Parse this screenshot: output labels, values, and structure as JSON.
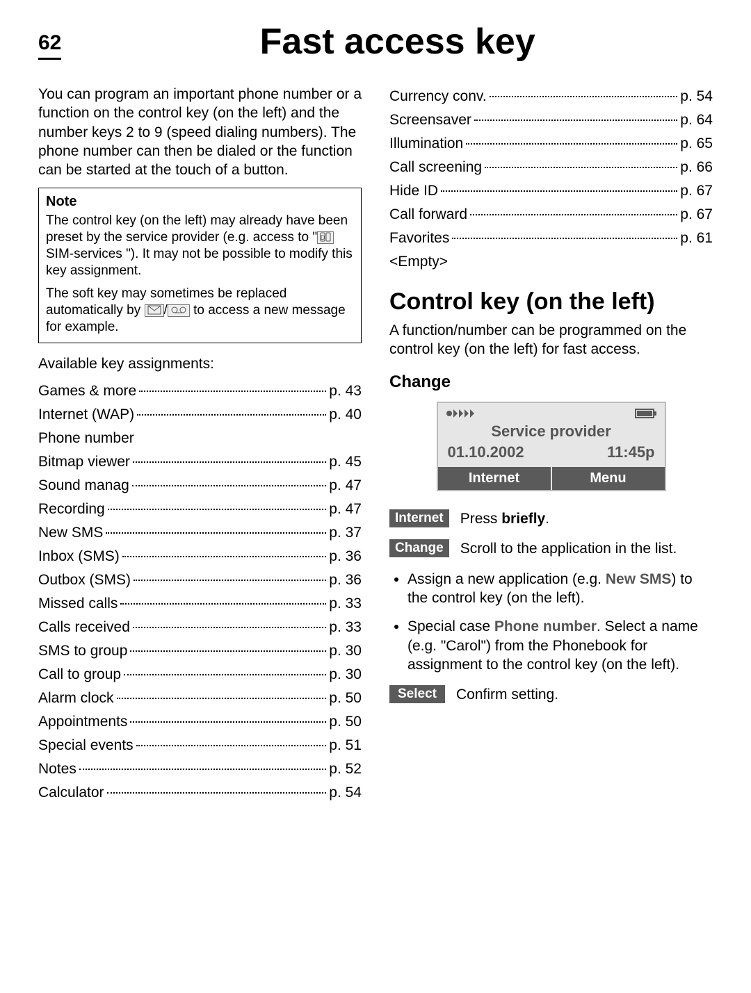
{
  "page_number": "62",
  "title": "Fast access key",
  "intro": "You can program an important phone number or a function on the control key (on the left) and the number keys 2 to 9 (speed dialing numbers). The phone number can then be dialed or the function can be started at the touch of a button.",
  "note": {
    "heading": "Note",
    "p1a": "The control key (on the left) may already have been preset by the service provider (e.g. access to \"",
    "p1b": " SIM-services \"). It may not be possible to modify this key assignment.",
    "p2a": "The soft key may sometimes be replaced automatically by ",
    "p2b": " to access a new message for example.",
    "sim_icon_label": "sim-icon",
    "msg_icon_label": "message-icon",
    "vm_icon_label": "voicemail-icon",
    "slash": "/"
  },
  "available_heading": "Available key assignments:",
  "toc_left": [
    {
      "label": "Games & more",
      "page": "p. 43"
    },
    {
      "label": "Internet (WAP)",
      "page": "p. 40"
    },
    {
      "label": "Phone number",
      "page": ""
    },
    {
      "label": "Bitmap viewer",
      "page": "p. 45"
    },
    {
      "label": "Sound manag",
      "page": "p. 47"
    },
    {
      "label": "Recording",
      "page": "p. 47"
    },
    {
      "label": "New SMS",
      "page": "p. 37"
    },
    {
      "label": "Inbox (SMS)",
      "page": "p. 36"
    },
    {
      "label": "Outbox (SMS)",
      "page": "p. 36"
    },
    {
      "label": "Missed calls",
      "page": "p. 33"
    },
    {
      "label": "Calls received",
      "page": "p. 33"
    },
    {
      "label": "SMS to group",
      "page": "p. 30"
    },
    {
      "label": "Call to group",
      "page": "p. 30"
    },
    {
      "label": "Alarm clock",
      "page": "p. 50"
    },
    {
      "label": "Appointments",
      "page": "p. 50"
    },
    {
      "label": "Special events",
      "page": "p. 51"
    },
    {
      "label": "Notes",
      "page": "p. 52"
    },
    {
      "label": "Calculator",
      "page": "p. 54"
    }
  ],
  "toc_right": [
    {
      "label": "Currency conv.",
      "page": "p. 54"
    },
    {
      "label": "Screensaver",
      "page": "p. 64"
    },
    {
      "label": "Illumination",
      "page": "p. 65"
    },
    {
      "label": "Call screening",
      "page": "p. 66"
    },
    {
      "label": "Hide ID",
      "page": "p. 67"
    },
    {
      "label": "Call forward",
      "page": "p. 67"
    },
    {
      "label": "Favorites",
      "page": "p. 61"
    },
    {
      "label": "<Empty>",
      "page": ""
    }
  ],
  "section2": {
    "heading": "Control key (on the left)",
    "body": "A function/number can be programmed on the control key (on the left) for fast access.",
    "change_heading": "Change",
    "phone": {
      "provider": "Service provider",
      "date": "01.10.2002",
      "time": "11:45p",
      "left_softkey": "Internet",
      "right_softkey": "Menu",
      "signal_color": "#5a5a5a",
      "battery_color": "#5a5a5a",
      "bg": "#e6e6e6"
    },
    "actions": [
      {
        "pill": "Internet",
        "desc_prefix": "Press ",
        "desc_bold": "briefly",
        "desc_suffix": "."
      },
      {
        "pill": "Change",
        "desc_prefix": "Scroll to the application in the list.",
        "desc_bold": "",
        "desc_suffix": ""
      }
    ],
    "bullets": [
      {
        "pre": "Assign a new application (e.g. ",
        "kw": "New SMS",
        "post": ") to the control key (on the left)."
      },
      {
        "pre": "Special case ",
        "kw": "Phone number",
        "post": ". Select a name (e.g. \"Carol\") from the Phonebook for assignment to  the control key (on the left)."
      }
    ],
    "select": {
      "pill": "Select",
      "desc": "Confirm setting."
    }
  },
  "colors": {
    "text": "#000000",
    "grey_text": "#555555",
    "pill_bg": "#5a5a5a",
    "border": "#000000"
  }
}
